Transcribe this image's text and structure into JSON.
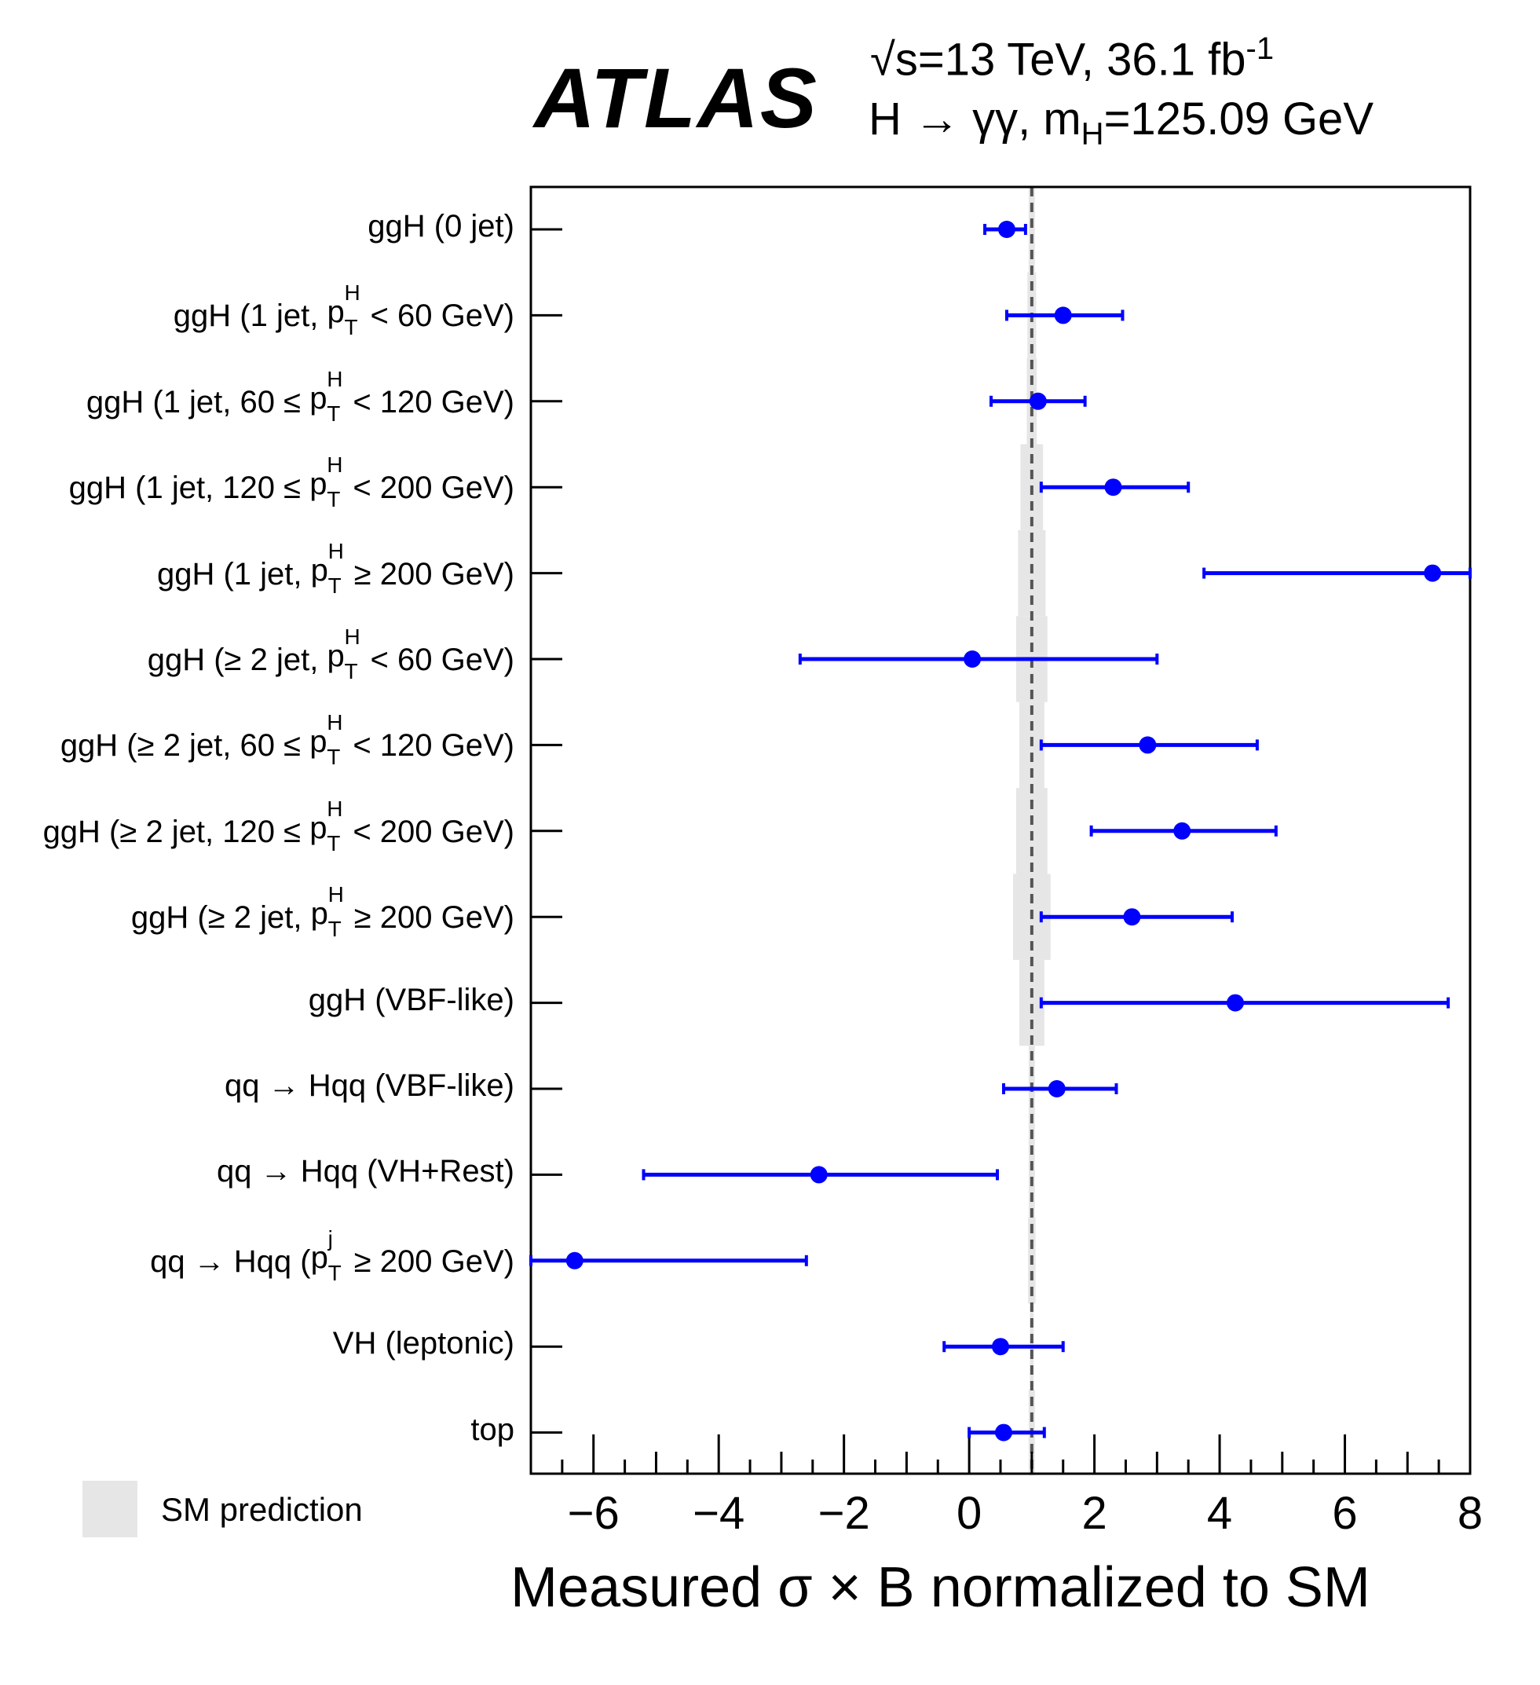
{
  "header": {
    "experiment": "ATLAS",
    "energy_prefix": "√s=13 TeV, 36.1 fb",
    "energy_sup": "-1",
    "channel_prefix": "H → γγ,  m",
    "channel_sub": "H",
    "channel_suffix": "=125.09 GeV"
  },
  "legend": {
    "sm_label": "SM prediction"
  },
  "colors": {
    "points": "#0000ff",
    "band": "#e6e6e6",
    "sm_line": "#555555"
  },
  "chart_data": {
    "type": "scatter",
    "orientation": "horizontal",
    "xlabel": "Measured σ × B normalized to SM",
    "xlim": [
      -7,
      8
    ],
    "xticks": [
      -6,
      -4,
      -2,
      0,
      2,
      4,
      6,
      8
    ],
    "xtick_labels": [
      "−6",
      "−4",
      "−2",
      "0",
      "2",
      "4",
      "6",
      "8"
    ],
    "sm_reference": 1,
    "categories": [
      {
        "label_pre": "ggH (0 jet)",
        "pt": null,
        "label_post": ""
      },
      {
        "label_pre": "ggH (1 jet, ",
        "pt": "H",
        "label_post": " < 60 GeV)"
      },
      {
        "label_pre": "ggH (1 jet, 60 ≤ ",
        "pt": "H",
        "label_post": " < 120 GeV)"
      },
      {
        "label_pre": "ggH (1 jet, 120 ≤ ",
        "pt": "H",
        "label_post": " < 200 GeV)"
      },
      {
        "label_pre": "ggH (1 jet, ",
        "pt": "H",
        "label_post": " ≥ 200 GeV)"
      },
      {
        "label_pre": "ggH (≥ 2 jet, ",
        "pt": "H",
        "label_post": " < 60 GeV)"
      },
      {
        "label_pre": "ggH (≥ 2 jet, 60 ≤ ",
        "pt": "H",
        "label_post": " < 120 GeV)"
      },
      {
        "label_pre": "ggH (≥ 2 jet, 120 ≤ ",
        "pt": "H",
        "label_post": " < 200 GeV)"
      },
      {
        "label_pre": "ggH (≥ 2 jet, ",
        "pt": "H",
        "label_post": " ≥ 200 GeV)"
      },
      {
        "label_pre": "ggH (VBF-like)",
        "pt": null,
        "label_post": ""
      },
      {
        "label_pre": "qq → Hqq (VBF-like)",
        "pt": null,
        "label_post": ""
      },
      {
        "label_pre": "qq → Hqq (VH+Rest)",
        "pt": null,
        "label_post": ""
      },
      {
        "label_pre": "qq → Hqq (",
        "pt": "j",
        "label_post": " ≥ 200 GeV)"
      },
      {
        "label_pre": "VH (leptonic)",
        "pt": null,
        "label_post": ""
      },
      {
        "label_pre": "top",
        "pt": null,
        "label_post": ""
      }
    ],
    "values": [
      0.6,
      1.5,
      1.1,
      2.3,
      7.4,
      0.05,
      2.85,
      3.4,
      2.6,
      4.25,
      1.4,
      -2.4,
      -6.3,
      0.5,
      0.55
    ],
    "err_low": [
      0.35,
      0.9,
      0.75,
      1.15,
      3.65,
      2.75,
      1.7,
      1.45,
      1.45,
      3.1,
      0.85,
      2.8,
      0.7,
      0.9,
      0.55
    ],
    "err_high": [
      0.3,
      0.95,
      0.75,
      1.2,
      0.6,
      2.95,
      1.75,
      1.5,
      1.6,
      3.4,
      0.95,
      2.85,
      3.7,
      1.0,
      0.65
    ],
    "sm_band_halfwidth": [
      0.05,
      0.07,
      0.08,
      0.18,
      0.22,
      0.25,
      0.2,
      0.25,
      0.3,
      0.2,
      0.05,
      0.05,
      0.06,
      0.03,
      0.05
    ]
  }
}
